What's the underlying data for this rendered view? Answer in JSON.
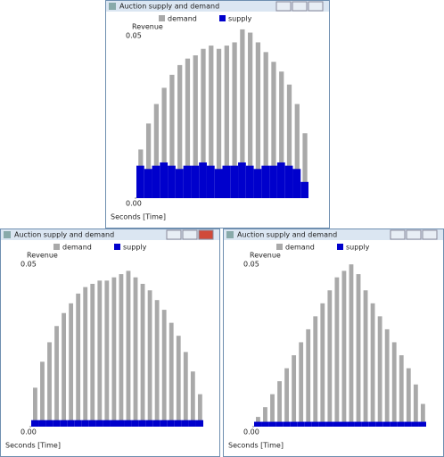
{
  "windows": [
    {
      "title": "Auction supply and demand",
      "chart": {
        "type": "bar",
        "y_label": "Revenue",
        "x_label": "Seconds [Time]",
        "ylim": [
          0,
          0.055
        ],
        "yticks": [
          {
            "value": 0,
            "label": "0.00"
          },
          0.05
        ],
        "series": [
          {
            "name": "demand",
            "color": "#a9a9a9",
            "values": [
              0.015,
              0.023,
              0.029,
              0.034,
              0.038,
              0.041,
              0.043,
              0.044,
              0.046,
              0.047,
              0.046,
              0.047,
              0.048,
              0.052,
              0.051,
              0.048,
              0.045,
              0.042,
              0.039,
              0.035,
              0.029,
              0.02
            ]
          },
          {
            "name": "supply",
            "color": "#0000cc",
            "values": [
              0.01,
              0.009,
              0.01,
              0.011,
              0.01,
              0.009,
              0.01,
              0.01,
              0.011,
              0.01,
              0.009,
              0.01,
              0.01,
              0.011,
              0.01,
              0.009,
              0.01,
              0.01,
              0.011,
              0.01,
              0.009,
              0.005
            ]
          }
        ]
      }
    },
    {
      "title": "Auction supply and demand",
      "chart": {
        "type": "bar",
        "y_label": "Revenue",
        "x_label": "Seconds [Time]",
        "ylim": [
          0,
          0.055
        ],
        "yticks": [
          {
            "value": 0,
            "label": "0.00"
          },
          0.05
        ],
        "series": [
          {
            "name": "demand",
            "color": "#a9a9a9",
            "values": [
              0.012,
              0.02,
              0.026,
              0.031,
              0.035,
              0.038,
              0.041,
              0.043,
              0.044,
              0.045,
              0.045,
              0.046,
              0.047,
              0.048,
              0.046,
              0.044,
              0.042,
              0.039,
              0.036,
              0.032,
              0.028,
              0.023,
              0.017,
              0.01
            ]
          },
          {
            "name": "supply",
            "color": "#0000cc",
            "values": [
              0.002,
              0.002,
              0.002,
              0.002,
              0.002,
              0.002,
              0.002,
              0.002,
              0.002,
              0.002,
              0.002,
              0.002,
              0.002,
              0.002,
              0.002,
              0.002,
              0.002,
              0.002,
              0.002,
              0.002,
              0.002,
              0.002,
              0.002,
              0.002
            ]
          }
        ]
      }
    },
    {
      "title": "Auction supply and demand",
      "chart": {
        "type": "bar",
        "y_label": "Revenue",
        "x_label": "Seconds [Time]",
        "ylim": [
          0,
          0.055
        ],
        "yticks": [
          {
            "value": 0,
            "label": "0.00"
          },
          0.05
        ],
        "series": [
          {
            "name": "demand",
            "color": "#a9a9a9",
            "values": [
              0.003,
              0.006,
              0.01,
              0.014,
              0.018,
              0.022,
              0.026,
              0.03,
              0.034,
              0.038,
              0.042,
              0.046,
              0.048,
              0.05,
              0.047,
              0.042,
              0.038,
              0.034,
              0.03,
              0.026,
              0.022,
              0.018,
              0.013,
              0.007
            ]
          },
          {
            "name": "supply",
            "color": "#0000cc",
            "values": [
              0.0015,
              0.0015,
              0.0015,
              0.0015,
              0.0015,
              0.0015,
              0.0015,
              0.0015,
              0.0015,
              0.0015,
              0.0015,
              0.0015,
              0.0015,
              0.0015,
              0.0015,
              0.0015,
              0.0015,
              0.0015,
              0.0015,
              0.0015,
              0.0015,
              0.0015,
              0.0015,
              0.0015
            ]
          }
        ]
      }
    }
  ]
}
